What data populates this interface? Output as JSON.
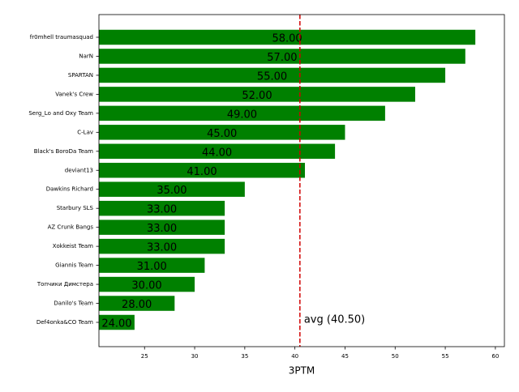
{
  "chart_data": {
    "type": "barh",
    "categories": [
      "fr0mhell traumasquad",
      "NarN",
      "SPARTAN",
      "Vanek's Crew",
      "Serg_Lo and Oxy Team",
      "C-Lav",
      "Black's BoroDa Team",
      "deviant13",
      "Dawkins Richard",
      "Starbury SLS",
      "AZ Crunk Bangs",
      "Xokkeist Team",
      "Giannis Team",
      "Топчики Димстера",
      "Danilo's Team",
      "Def4onka&CO Team"
    ],
    "values": [
      58,
      57,
      55,
      52,
      49,
      45,
      44,
      41,
      35,
      33,
      33,
      33,
      31,
      30,
      28,
      24
    ],
    "value_labels": [
      "58.00",
      "57.00",
      "55.00",
      "52.00",
      "49.00",
      "45.00",
      "44.00",
      "41.00",
      "35.00",
      "33.00",
      "33.00",
      "33.00",
      "31.00",
      "30.00",
      "28.00",
      "24.00"
    ],
    "color": "#008000",
    "xlabel": "3PTM",
    "xlim": [
      20.45,
      60.9
    ],
    "xticks": [
      25,
      30,
      35,
      40,
      45,
      50,
      55,
      60
    ],
    "average": {
      "value": 40.5,
      "label": "avg (40.50)",
      "color": "#d00000"
    }
  }
}
